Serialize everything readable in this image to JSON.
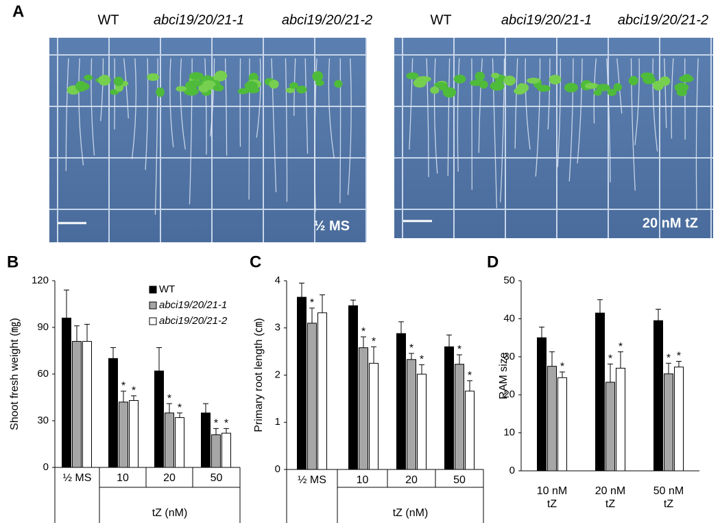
{
  "panel_labels": [
    "A",
    "B",
    "C",
    "D"
  ],
  "photos": [
    {
      "genotypes": [
        "WT",
        "abci19/20/21-1",
        "abci19/20/21-2"
      ],
      "condition": "½ MS"
    },
    {
      "genotypes": [
        "WT",
        "abci19/20/21-1",
        "abci19/20/21-2"
      ],
      "condition": "20 nM tZ"
    }
  ],
  "chart_data": [
    {
      "type": "bar",
      "y_label": "Shoot fresh weight (㎎)",
      "categories": [
        "½ MS",
        "10",
        "20",
        "50"
      ],
      "group_label": "tZ (nM)",
      "ylim": [
        0,
        120
      ],
      "yticks": [
        0,
        30,
        60,
        90,
        120
      ],
      "legend": "upper right",
      "series": [
        {
          "name": "WT",
          "color": "#000000",
          "values": [
            96,
            70,
            62,
            35
          ],
          "errors": [
            18,
            7,
            15,
            6
          ],
          "stars": [
            null,
            null,
            null,
            null
          ]
        },
        {
          "name": "abci19/20/21-1",
          "color": "#a6a6a6",
          "values": [
            81,
            42,
            35,
            21
          ],
          "errors": [
            10,
            7,
            6,
            4
          ],
          "stars": [
            null,
            "*",
            "*",
            "*"
          ]
        },
        {
          "name": "abci19/20/21-2",
          "color": "#ffffff",
          "values": [
            81,
            43,
            32,
            22
          ],
          "errors": [
            11,
            3,
            3,
            3
          ],
          "stars": [
            null,
            "*",
            "*",
            "*"
          ]
        }
      ]
    },
    {
      "type": "bar",
      "y_label": "Primary root length (㎝)",
      "categories": [
        "½ MS",
        "10",
        "20",
        "50"
      ],
      "group_label": "tZ (nM)",
      "ylim": [
        0,
        4
      ],
      "yticks": [
        0,
        1,
        2,
        3,
        4
      ],
      "series": [
        {
          "name": "WT",
          "color": "#000000",
          "values": [
            3.65,
            3.47,
            2.88,
            2.6
          ],
          "errors": [
            0.3,
            0.12,
            0.25,
            0.25
          ],
          "stars": [
            null,
            null,
            null,
            null
          ]
        },
        {
          "name": "abci19/20/21-1",
          "color": "#a6a6a6",
          "values": [
            3.1,
            2.58,
            2.33,
            2.23
          ],
          "errors": [
            0.32,
            0.23,
            0.13,
            0.2
          ],
          "stars": [
            "*",
            "*",
            "*",
            "*"
          ]
        },
        {
          "name": "abci19/20/21-2",
          "color": "#ffffff",
          "values": [
            3.32,
            2.25,
            2.02,
            1.66
          ],
          "errors": [
            0.38,
            0.35,
            0.2,
            0.22
          ],
          "stars": [
            null,
            "*",
            "*",
            "*"
          ]
        }
      ]
    },
    {
      "type": "bar",
      "y_label": "RAM size",
      "categories": [
        "10 nM tZ",
        "20 nM tZ",
        "50 nM tZ"
      ],
      "ylim": [
        0,
        50
      ],
      "yticks": [
        0,
        10,
        20,
        30,
        40,
        50
      ],
      "series": [
        {
          "name": "WT",
          "color": "#000000",
          "values": [
            35,
            41.5,
            39.5
          ],
          "errors": [
            2.8,
            3.5,
            3
          ],
          "stars": [
            null,
            null,
            null
          ]
        },
        {
          "name": "abci19/20/21-1",
          "color": "#a6a6a6",
          "values": [
            27.5,
            23.3,
            25.5
          ],
          "errors": [
            3.8,
            4.8,
            2.8
          ],
          "stars": [
            null,
            "*",
            "*"
          ]
        },
        {
          "name": "abci19/20/21-2",
          "color": "#ffffff",
          "values": [
            24.5,
            27,
            27.3
          ],
          "errors": [
            1.5,
            4.3,
            1.5
          ],
          "stars": [
            "*",
            "*",
            "*"
          ]
        }
      ]
    }
  ]
}
